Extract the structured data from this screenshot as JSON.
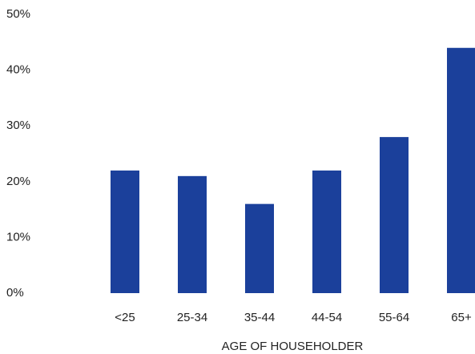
{
  "chart_data": {
    "type": "bar",
    "x_label": "AGE OF HOUSEHOLDER",
    "categories": [
      "<25",
      "25-34",
      "35-44",
      "44-54",
      "55-64",
      "65+"
    ],
    "values": [
      22,
      21,
      16,
      22,
      28,
      44
    ],
    "color": "#1b409b",
    "ylim": [
      0,
      50
    ],
    "yticks": [
      {
        "value": 0,
        "label": "0%"
      },
      {
        "value": 10,
        "label": "10%"
      },
      {
        "value": 20,
        "label": "20%"
      },
      {
        "value": 30,
        "label": "30%"
      },
      {
        "value": 40,
        "label": "40%"
      },
      {
        "value": 50,
        "label": "50%"
      }
    ],
    "grid": false
  }
}
